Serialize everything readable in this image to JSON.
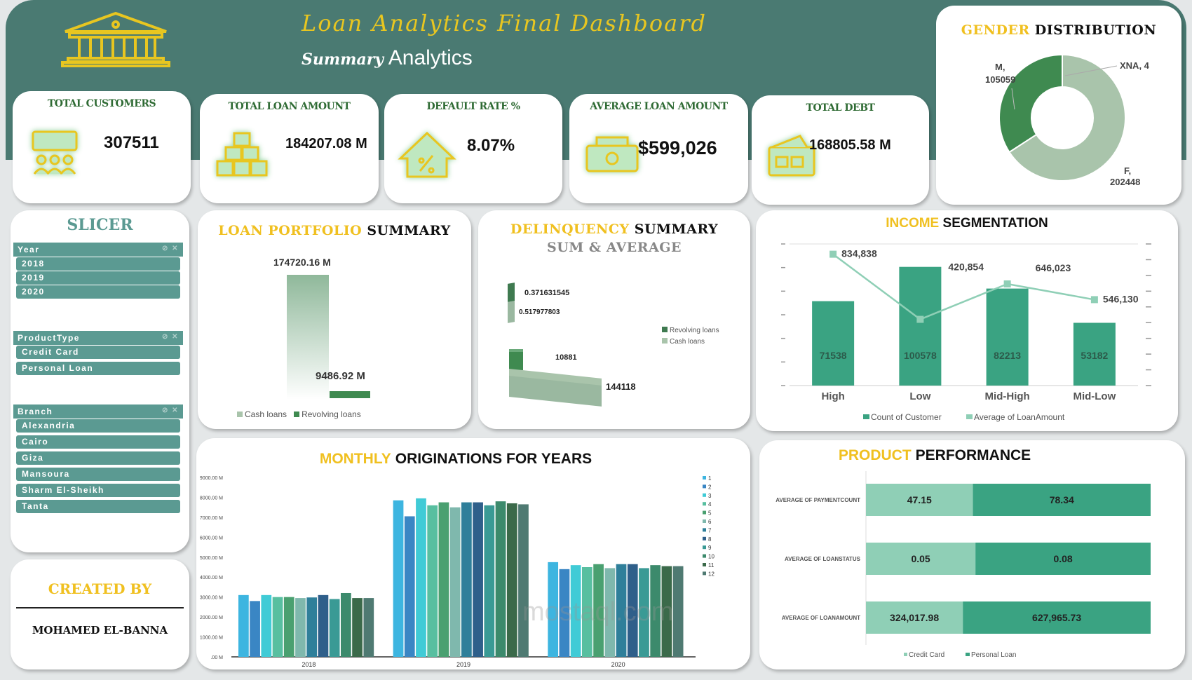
{
  "header": {
    "title": "Loan Analytics Final Dashboard",
    "subtitle_a": "Summary",
    "subtitle_b": "Analytics"
  },
  "kpis": [
    {
      "title": "TOTAL CUSTOMERS",
      "value": "307511",
      "icon": "customers-icon"
    },
    {
      "title": "TOTAL LOAN AMOUNT",
      "value": "184207.08 M",
      "icon": "gold-bars-icon"
    },
    {
      "title": "DEFAULT RATE %",
      "value": "8.07%",
      "icon": "house-percent-icon"
    },
    {
      "title": "AVERAGE LOAN AMOUNT",
      "value": "$599,026",
      "icon": "cash-box-icon"
    },
    {
      "title": "TOTAL DEBT",
      "value": "168805.58 M",
      "icon": "wallet-icon"
    }
  ],
  "colors": {
    "teal": "#4a7a72",
    "gold": "#f0c020",
    "slicer": "#5b9a92",
    "dark_green": "#3f8a50",
    "light_green": "#a9c4ab",
    "bar_teal": "#3aa382",
    "light_teal": "#8fcfb6"
  },
  "gender": {
    "title_a": "GENDER",
    "title_b": "DISTRIBUTION",
    "labels": [
      "M,",
      "105059",
      "XNA, 4",
      "F,",
      "202448"
    ]
  },
  "slicer": {
    "title": "SLICER",
    "groups": [
      {
        "header": "Year",
        "items": [
          "2018",
          "2019",
          "2020"
        ]
      },
      {
        "header": "ProductType",
        "items": [
          "Credit Card",
          "Personal Loan"
        ]
      },
      {
        "header": "Branch",
        "items": [
          "Alexandria",
          "Cairo",
          "Giza",
          "Mansoura",
          "Sharm El-Sheikh",
          "Tanta"
        ]
      }
    ]
  },
  "credits": {
    "label": "CREATED BY",
    "name": "MOHAMED EL-BANNA"
  },
  "portfolio": {
    "title_a": "LOAN PORTFOLIO",
    "title_b": "SUMMARY",
    "labels": [
      "174720.16 M",
      "9486.92 M"
    ],
    "legend": [
      "Cash loans",
      "Revolving loans"
    ]
  },
  "delinquency": {
    "title_a": "DELINQUENCY",
    "title_b": "SUMMARY",
    "subtitle": "SUM & AVERAGE",
    "labels": [
      "0.371631545",
      "0.517977803",
      "10881",
      "144118"
    ],
    "legend": [
      "Revolving loans",
      "Cash loans"
    ]
  },
  "monthly": {
    "title_a": "MONTHLY",
    "title_b": "ORIGINATIONS FOR YEARS"
  },
  "product": {
    "title_a": "PRODUCT",
    "title_b": "PERFORMANCE"
  },
  "watermark": {
    "text": "mostaql.com"
  },
  "chart_data": [
    {
      "type": "pie",
      "title": "GENDER DISTRIBUTION",
      "categories": [
        "F",
        "M",
        "XNA"
      ],
      "values": [
        202448,
        105059,
        4
      ]
    },
    {
      "type": "bar",
      "title": "LOAN PORTFOLIO SUMMARY",
      "categories": [
        "Cash loans",
        "Revolving loans"
      ],
      "values": [
        174720.16,
        9486.92
      ],
      "unit": "M"
    },
    {
      "type": "bar",
      "title": "DELINQUENCY SUMMARY SUM & AVERAGE",
      "series": [
        {
          "name": "Revolving loans",
          "values": [
            0.371631545,
            10881
          ]
        },
        {
          "name": "Cash loans",
          "values": [
            0.517977803,
            144118
          ]
        }
      ]
    },
    {
      "type": "bar",
      "title": "INCOME SEGMENTATION",
      "categories": [
        "High",
        "Low",
        "Mid-High",
        "Mid-Low"
      ],
      "series": [
        {
          "name": "Count of Customer",
          "values": [
            71538,
            100578,
            82213,
            53182
          ],
          "axis": "left"
        },
        {
          "name": "Average of LoanAmount",
          "type": "line",
          "values": [
            834838,
            420854,
            646023,
            546130
          ],
          "axis": "right"
        }
      ],
      "value_labels": {
        "bars": [
          "71538",
          "100578",
          "82213",
          "53182"
        ],
        "line": [
          "834,838",
          "420,854",
          "646,023",
          "546,130"
        ]
      },
      "ylim": [
        0,
        120000
      ],
      "y2lim": [
        0,
        900000
      ],
      "legend": "bottom"
    },
    {
      "type": "bar",
      "title": "MONTHLY ORIGINATIONS FOR YEARS",
      "categories": [
        "2018",
        "2019",
        "2020"
      ],
      "yticks": [
        ".00 M",
        "1000.00 M",
        "2000.00 M",
        "3000.00 M",
        "4000.00 M",
        "5000.00 M",
        "6000.00 M",
        "7000.00 M",
        "8000.00 M",
        "9000.00 M"
      ],
      "ylim": [
        0,
        9000
      ],
      "legend": "right",
      "series": [
        {
          "name": "1",
          "values": [
            3100,
            7850,
            4750
          ]
        },
        {
          "name": "2",
          "values": [
            2800,
            7050,
            4400
          ]
        },
        {
          "name": "3",
          "values": [
            3100,
            7950,
            4600
          ]
        },
        {
          "name": "4",
          "values": [
            3000,
            7600,
            4500
          ]
        },
        {
          "name": "5",
          "values": [
            3000,
            7750,
            4650
          ]
        },
        {
          "name": "6",
          "values": [
            2950,
            7500,
            4450
          ]
        },
        {
          "name": "7",
          "values": [
            2980,
            7750,
            4650
          ]
        },
        {
          "name": "8",
          "values": [
            3100,
            7750,
            4650
          ]
        },
        {
          "name": "9",
          "values": [
            2900,
            7600,
            4450
          ]
        },
        {
          "name": "10",
          "values": [
            3200,
            7800,
            4600
          ]
        },
        {
          "name": "11",
          "values": [
            2950,
            7700,
            4550
          ]
        },
        {
          "name": "12",
          "values": [
            2950,
            7650,
            4550
          ]
        }
      ]
    },
    {
      "type": "bar",
      "title": "PRODUCT PERFORMANCE",
      "stacked": true,
      "categories": [
        "AVERAGE OF PAYMENTCOUNT",
        "AVERAGE OF LOANSTATUS",
        "AVERAGE OF LOANAMOUNT"
      ],
      "series": [
        {
          "name": "Credit Card",
          "values": [
            47.15,
            0.05,
            324017.98
          ],
          "labels": [
            "47.15",
            "0.05",
            "324,017.98"
          ]
        },
        {
          "name": "Personal Loan",
          "values": [
            78.34,
            0.08,
            627965.73
          ],
          "labels": [
            "78.34",
            "0.08",
            "627,965.73"
          ]
        }
      ],
      "legend": "bottom"
    }
  ]
}
